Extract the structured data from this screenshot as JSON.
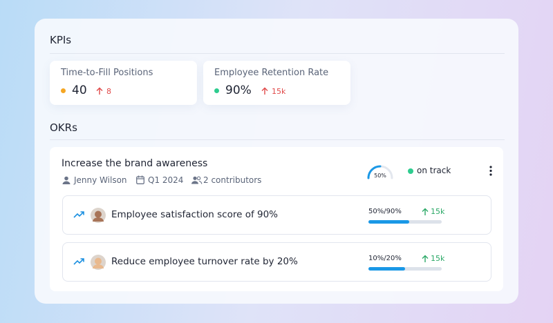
{
  "kpis": {
    "title": "KPIs",
    "items": [
      {
        "label": "Time-to-Fill Positions",
        "value": "40",
        "change": "8",
        "status_color": "#f5a623"
      },
      {
        "label": "Employee Retention Rate",
        "value": "90%",
        "change": "15k",
        "status_color": "#2ecc8f"
      }
    ]
  },
  "okrs": {
    "title": "OKRs",
    "objective": {
      "title": "Increase the brand awareness",
      "owner": "Jenny Wilson",
      "period": "Q1 2024",
      "contributors": "2 contributors",
      "progress": {
        "value": 50,
        "label": "50%"
      },
      "status": "on track",
      "key_results": [
        {
          "title": "Employee satisfaction score of 90%",
          "progress_label": "50%/90%",
          "current": 50,
          "target": 90,
          "change": "15k"
        },
        {
          "title": "Reduce employee turnover rate by 20%",
          "progress_label": "10%/20%",
          "current": 10,
          "target": 20,
          "change": "15k"
        }
      ]
    }
  }
}
